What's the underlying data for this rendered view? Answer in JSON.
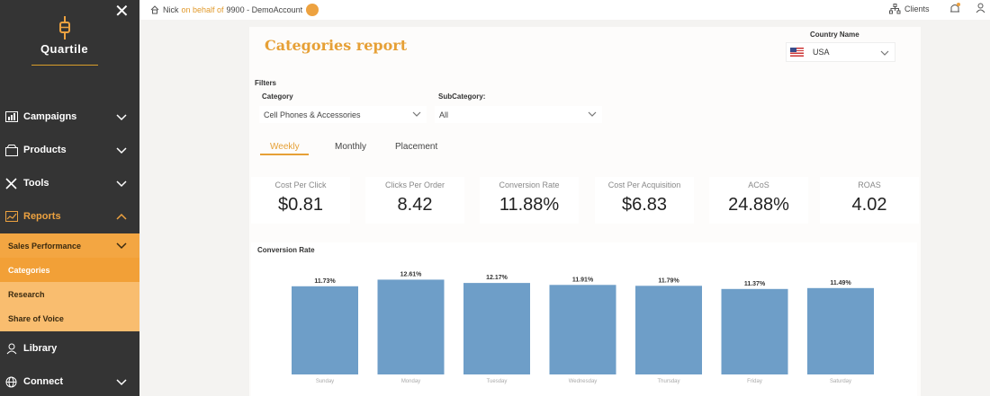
{
  "sidebar": {
    "logo_text": "Quartile",
    "items": [
      {
        "label": "Campaigns",
        "icon": "campaigns-icon"
      },
      {
        "label": "Products",
        "icon": "products-icon"
      },
      {
        "label": "Tools",
        "icon": "tools-icon"
      },
      {
        "label": "Reports",
        "icon": "reports-icon",
        "active": true
      },
      {
        "label": "Library",
        "icon": "library-icon"
      },
      {
        "label": "Connect",
        "icon": "connect-icon"
      }
    ],
    "subitems": [
      "Sales Performance",
      "Categories",
      "Research",
      "Share of Voice"
    ],
    "accent": "#eda240"
  },
  "topbar": {
    "user": "Nick",
    "on_behalf": "on behalf of",
    "account": "9900 - DemoAccount",
    "clients": "Clients"
  },
  "page": {
    "title": "Categories report",
    "country_label": "Country Name",
    "country_value": "USA",
    "filters_label": "Filters",
    "category_label": "Category",
    "category_value": "Cell Phones & Accessories",
    "subcategory_label": "SubCategory:",
    "subcategory_value": "All",
    "tabs": [
      "Weekly",
      "Monthly",
      "Placement"
    ],
    "active_tab": "Weekly"
  },
  "kpis": [
    {
      "label": "Cost Per Click",
      "value": "$0.81"
    },
    {
      "label": "Clicks Per Order",
      "value": "8.42"
    },
    {
      "label": "Conversion Rate",
      "value": "11.88%"
    },
    {
      "label": "Cost Per Acquisition",
      "value": "$6.83"
    },
    {
      "label": "ACoS",
      "value": "24.88%"
    },
    {
      "label": "ROAS",
      "value": "4.02"
    }
  ],
  "chart_data": {
    "type": "bar",
    "title": "Conversion Rate",
    "categories": [
      "Sunday",
      "Monday",
      "Tuesday",
      "Wednesday",
      "Thursday",
      "Friday",
      "Saturday"
    ],
    "values": [
      11.73,
      12.61,
      12.17,
      11.91,
      11.79,
      11.37,
      11.49
    ],
    "labels": [
      "11.73%",
      "12.61%",
      "12.17%",
      "11.91%",
      "11.79%",
      "11.37%",
      "11.49%"
    ],
    "color": "#6e9ec8",
    "ylim": [
      0,
      12.9
    ]
  }
}
